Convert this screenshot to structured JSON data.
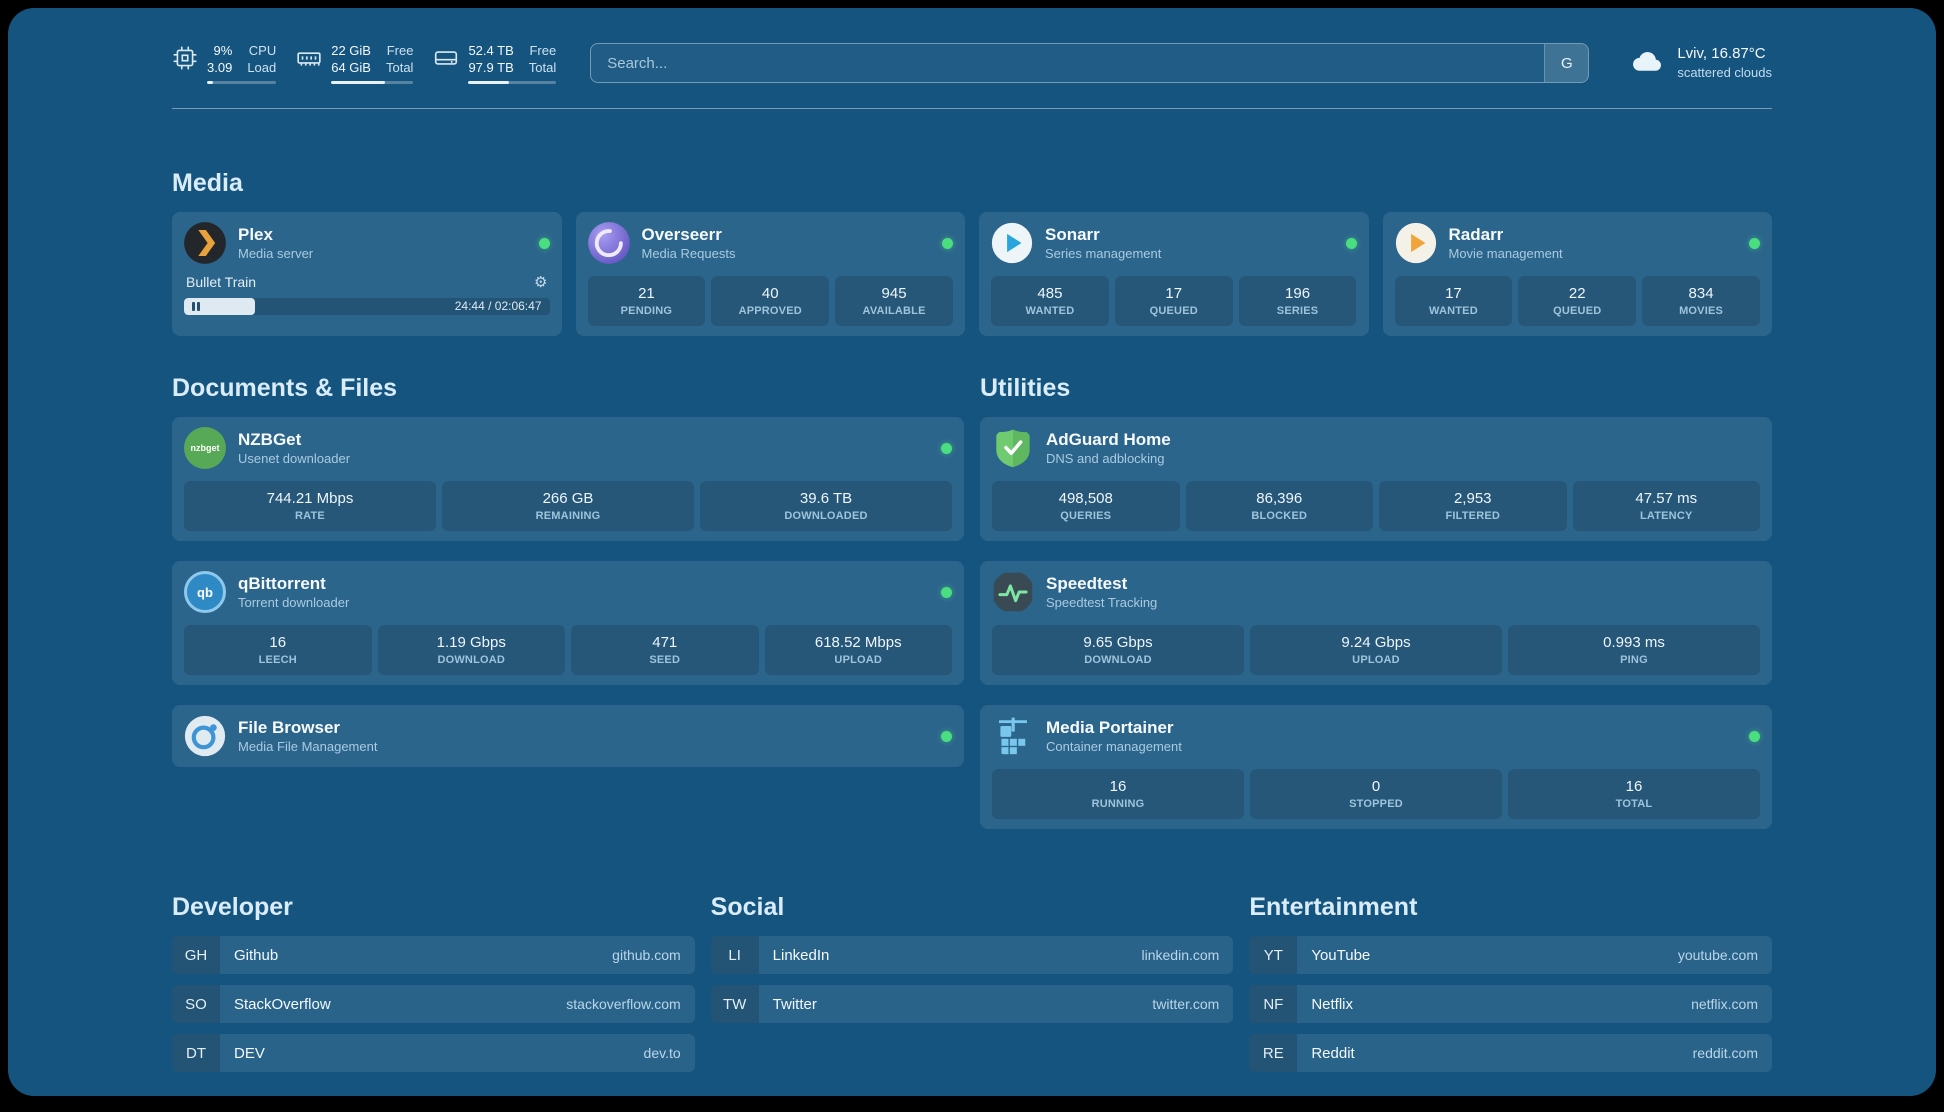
{
  "topbar": {
    "resources": [
      {
        "kind": "cpu",
        "v1": "9%",
        "v2": "3.09",
        "l1": "CPU",
        "l2": "Load",
        "progress": 9
      },
      {
        "kind": "memory",
        "v1": "22 GiB",
        "v2": "64 GiB",
        "l1": "Free",
        "l2": "Total",
        "progress": 66
      },
      {
        "kind": "disk",
        "v1": "52.4 TB",
        "v2": "97.9 TB",
        "l1": "Free",
        "l2": "Total",
        "progress": 46
      }
    ],
    "search": {
      "placeholder": "Search...",
      "provider": "G"
    },
    "weather": {
      "location": "Lviv, 16.87°C",
      "condition": "scattered clouds"
    }
  },
  "icons": {
    "gear": "⚙"
  },
  "media": {
    "heading": "Media",
    "plex": {
      "name": "Plex",
      "subtitle": "Media server",
      "now_playing": "Bullet Train",
      "time": "24:44 / 02:06:47",
      "progress": 19.5
    },
    "overseerr": {
      "name": "Overseerr",
      "subtitle": "Media Requests",
      "stats": [
        {
          "value": "21",
          "label": "PENDING"
        },
        {
          "value": "40",
          "label": "APPROVED"
        },
        {
          "value": "945",
          "label": "AVAILABLE"
        }
      ]
    },
    "sonarr": {
      "name": "Sonarr",
      "subtitle": "Series management",
      "stats": [
        {
          "value": "485",
          "label": "WANTED"
        },
        {
          "value": "17",
          "label": "QUEUED"
        },
        {
          "value": "196",
          "label": "SERIES"
        }
      ]
    },
    "radarr": {
      "name": "Radarr",
      "subtitle": "Movie management",
      "stats": [
        {
          "value": "17",
          "label": "WANTED"
        },
        {
          "value": "22",
          "label": "QUEUED"
        },
        {
          "value": "834",
          "label": "MOVIES"
        }
      ]
    }
  },
  "documents": {
    "heading": "Documents & Files",
    "nzbget": {
      "name": "NZBGet",
      "subtitle": "Usenet downloader",
      "icon_text": "nzbget",
      "stats": [
        {
          "value": "744.21 Mbps",
          "label": "RATE"
        },
        {
          "value": "266 GB",
          "label": "REMAINING"
        },
        {
          "value": "39.6 TB",
          "label": "DOWNLOADED"
        }
      ]
    },
    "qbittorrent": {
      "name": "qBittorrent",
      "subtitle": "Torrent downloader",
      "icon_text": "qb",
      "stats": [
        {
          "value": "16",
          "label": "LEECH"
        },
        {
          "value": "1.19 Gbps",
          "label": "DOWNLOAD"
        },
        {
          "value": "471",
          "label": "SEED"
        },
        {
          "value": "618.52 Mbps",
          "label": "UPLOAD"
        }
      ]
    },
    "filebrowser": {
      "name": "File Browser",
      "subtitle": "Media File Management"
    }
  },
  "utilities": {
    "heading": "Utilities",
    "adguard": {
      "name": "AdGuard Home",
      "subtitle": "DNS and adblocking",
      "stats": [
        {
          "value": "498,508",
          "label": "QUERIES"
        },
        {
          "value": "86,396",
          "label": "BLOCKED"
        },
        {
          "value": "2,953",
          "label": "FILTERED"
        },
        {
          "value": "47.57 ms",
          "label": "LATENCY"
        }
      ]
    },
    "speedtest": {
      "name": "Speedtest",
      "subtitle": "Speedtest Tracking",
      "stats": [
        {
          "value": "9.65 Gbps",
          "label": "DOWNLOAD"
        },
        {
          "value": "9.24 Gbps",
          "label": "UPLOAD"
        },
        {
          "value": "0.993 ms",
          "label": "PING"
        }
      ]
    },
    "portainer": {
      "name": "Media Portainer",
      "subtitle": "Container management",
      "stats": [
        {
          "value": "16",
          "label": "RUNNING"
        },
        {
          "value": "0",
          "label": "STOPPED"
        },
        {
          "value": "16",
          "label": "TOTAL"
        }
      ]
    }
  },
  "bookmarks": {
    "developer": {
      "heading": "Developer",
      "items": [
        {
          "abbr": "GH",
          "name": "Github",
          "url": "github.com"
        },
        {
          "abbr": "SO",
          "name": "StackOverflow",
          "url": "stackoverflow.com"
        },
        {
          "abbr": "DT",
          "name": "DEV",
          "url": "dev.to"
        }
      ]
    },
    "social": {
      "heading": "Social",
      "items": [
        {
          "abbr": "LI",
          "name": "LinkedIn",
          "url": "linkedin.com"
        },
        {
          "abbr": "TW",
          "name": "Twitter",
          "url": "twitter.com"
        }
      ]
    },
    "entertainment": {
      "heading": "Entertainment",
      "items": [
        {
          "abbr": "YT",
          "name": "YouTube",
          "url": "youtube.com"
        },
        {
          "abbr": "NF",
          "name": "Netflix",
          "url": "netflix.com"
        },
        {
          "abbr": "RE",
          "name": "Reddit",
          "url": "reddit.com"
        }
      ]
    }
  },
  "colors": {
    "background": "#15547f",
    "status_online": "#4ade80",
    "card": "#2c658c"
  }
}
